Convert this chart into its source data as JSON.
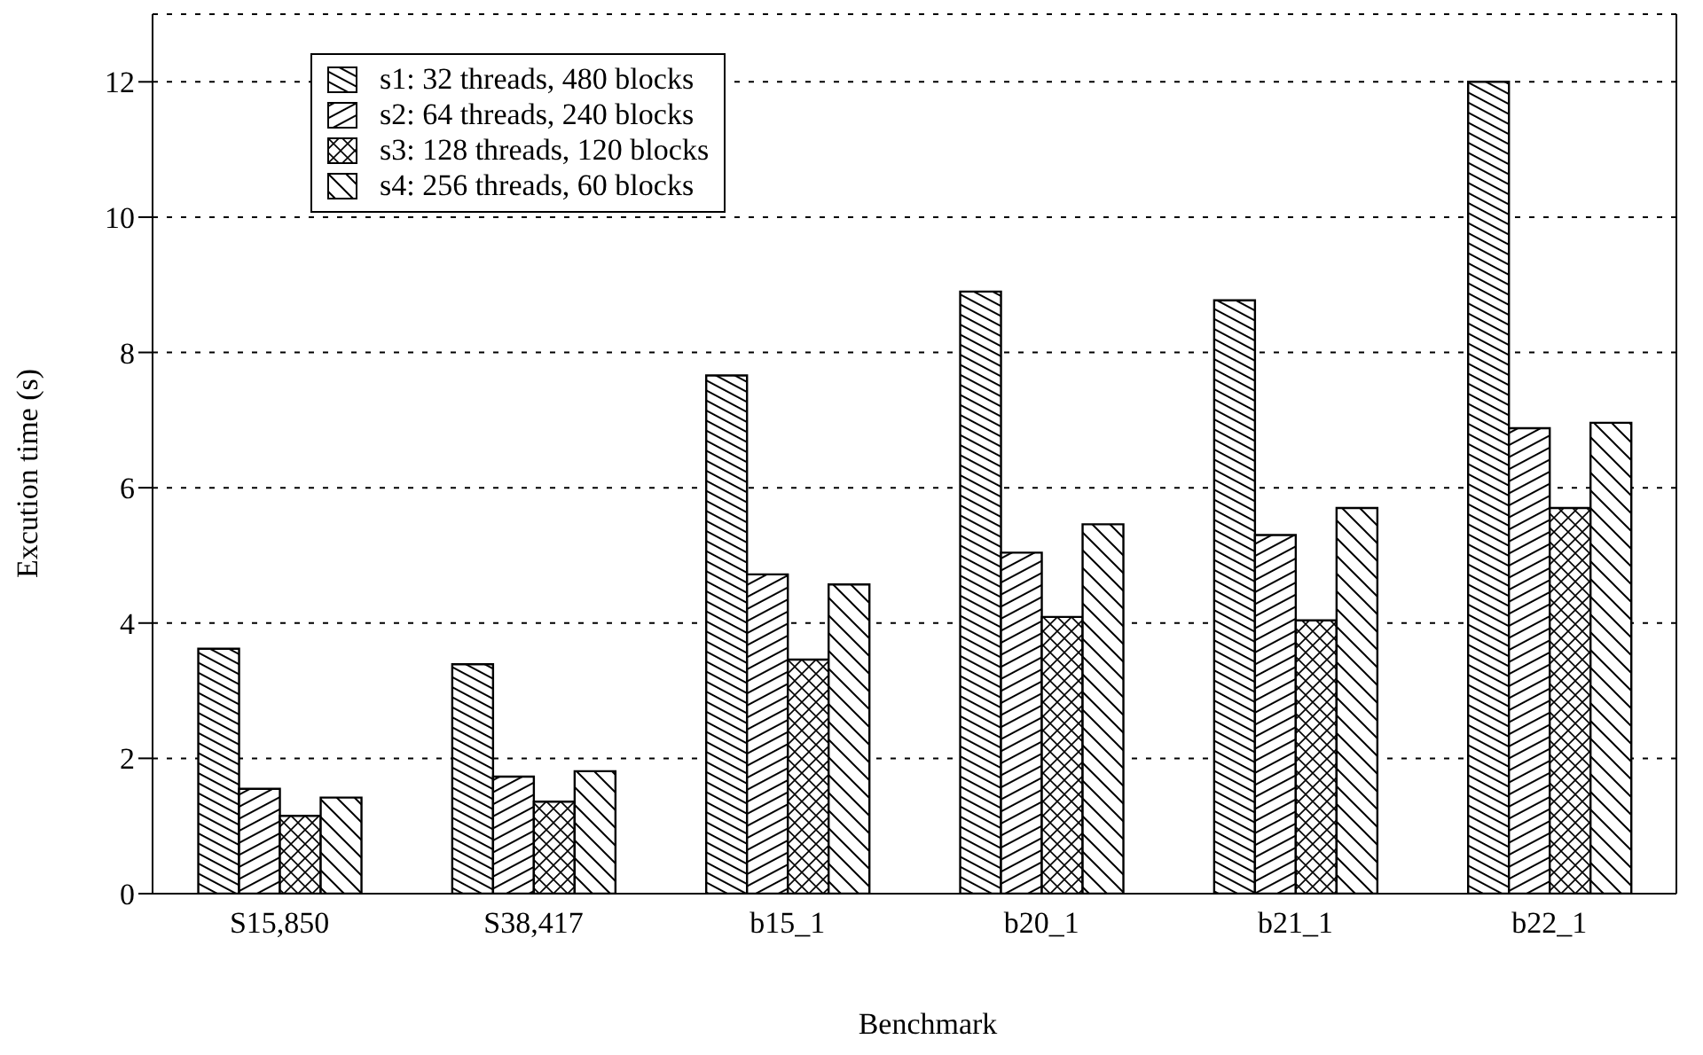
{
  "chart_data": {
    "type": "bar",
    "xlabel": "Benchmark",
    "ylabel": "Excution time (s)",
    "categories": [
      "S15,850",
      "S38,417",
      "b15_1",
      "b20_1",
      "b21_1",
      "b22_1"
    ],
    "series": [
      {
        "name": "s1: 32 threads, 480 blocks",
        "color": "#000000",
        "values": [
          3.62,
          3.39,
          7.66,
          8.9,
          8.77,
          12
        ]
      },
      {
        "name": "s2: 64 threads, 240 blocks",
        "color": "#000000",
        "values": [
          1.55,
          1.73,
          4.72,
          5.04,
          5.3,
          6.88
        ]
      },
      {
        "name": "s3: 128 threads, 120 blocks",
        "color": "#000000",
        "values": [
          1.15,
          1.36,
          3.46,
          4.09,
          4.04,
          5.7
        ]
      },
      {
        "name": "s4: 256 threads, 60 blocks",
        "color": "#000000",
        "values": [
          1.42,
          1.81,
          4.57,
          5.46,
          5.7,
          6.96
        ]
      }
    ],
    "ylim": [
      0,
      13
    ],
    "yticks": [
      0,
      2,
      4,
      6,
      8,
      10,
      12
    ],
    "grid": "y",
    "legend": "top left"
  }
}
